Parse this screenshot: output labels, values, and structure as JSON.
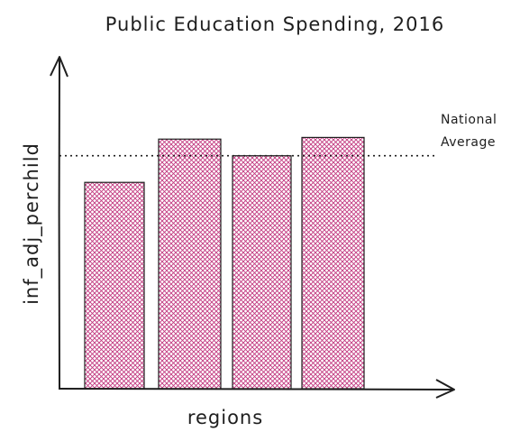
{
  "chart_data": {
    "type": "bar",
    "title": "Public Education Spending, 2016",
    "xlabel": "regions",
    "ylabel": "inf_adj_perchild",
    "categories": [
      "",
      "",
      "",
      ""
    ],
    "series": [
      {
        "values": [
          0.62,
          0.75,
          0.7,
          0.755
        ]
      }
    ],
    "ylim": [
      0,
      1
    ],
    "reference_line": {
      "label_lines": [
        "National",
        "Average"
      ],
      "value": 0.7,
      "style": "dotted"
    },
    "grid": false,
    "legend": "none",
    "colors": {
      "bar_fill": "#d8589c",
      "bar_hatch": "#a83277",
      "bar_stroke": "#1e1e1e",
      "axis": "#1e1e1e",
      "reference_line": "#1e1e1e"
    }
  }
}
